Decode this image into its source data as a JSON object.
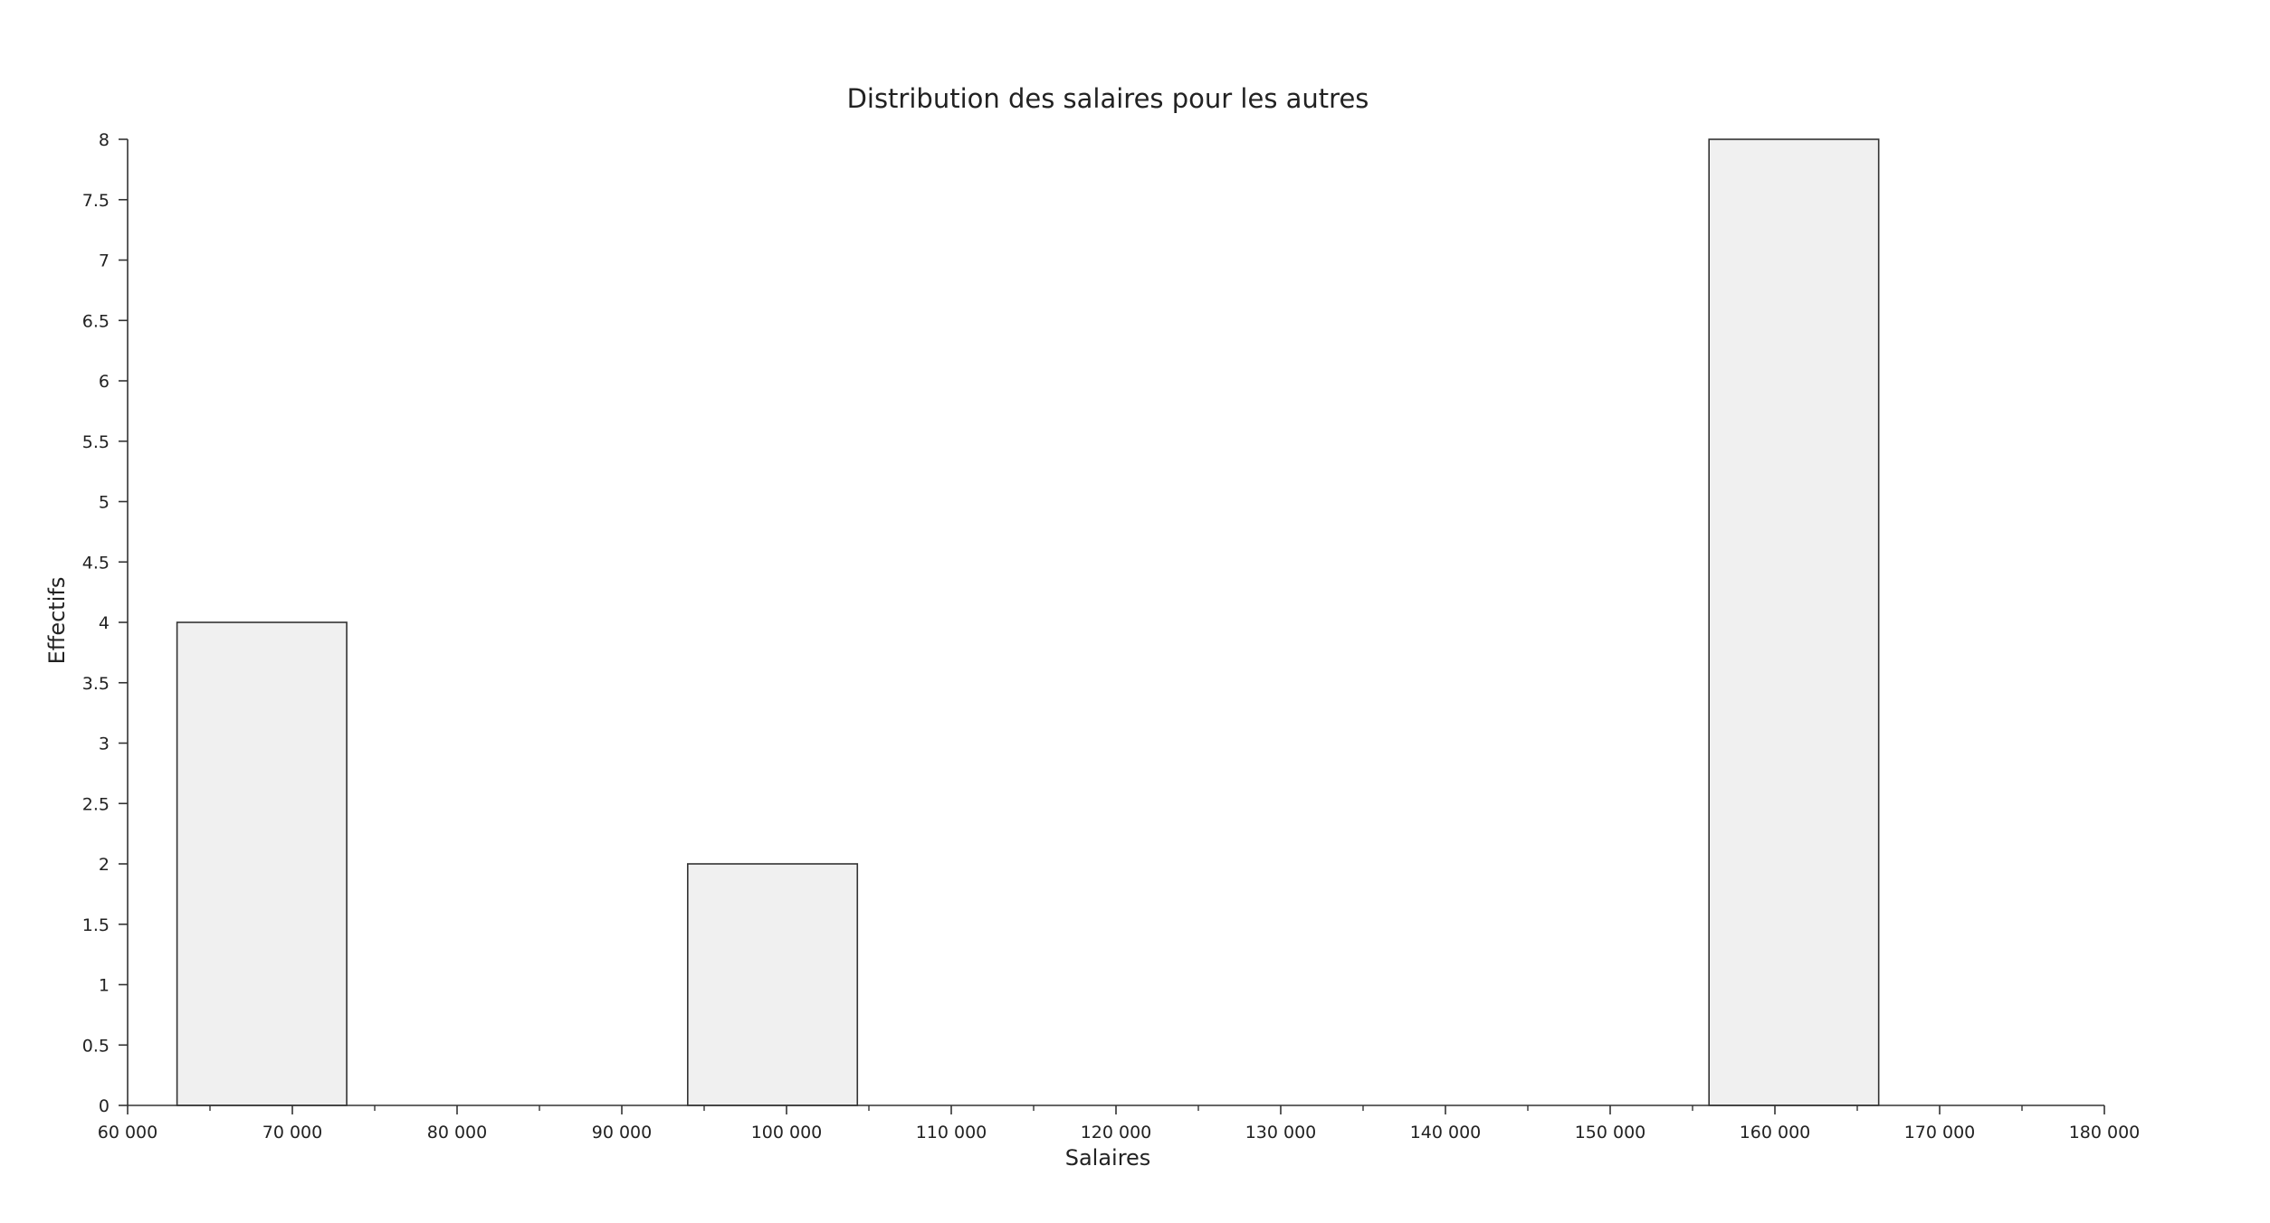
{
  "chart_data": {
    "type": "bar",
    "title": "Distribution des salaires pour les autres",
    "xlabel": "Salaires",
    "ylabel": "Effectifs",
    "xlim": [
      60000,
      180000
    ],
    "ylim": [
      0,
      8
    ],
    "grid": false,
    "x_ticks": [
      {
        "value": 60000,
        "label": "60 000"
      },
      {
        "value": 70000,
        "label": "70 000"
      },
      {
        "value": 80000,
        "label": "80 000"
      },
      {
        "value": 90000,
        "label": "90 000"
      },
      {
        "value": 100000,
        "label": "100 000"
      },
      {
        "value": 110000,
        "label": "110 000"
      },
      {
        "value": 120000,
        "label": "120 000"
      },
      {
        "value": 130000,
        "label": "130 000"
      },
      {
        "value": 140000,
        "label": "140 000"
      },
      {
        "value": 150000,
        "label": "150 000"
      },
      {
        "value": 160000,
        "label": "160 000"
      },
      {
        "value": 170000,
        "label": "170 000"
      },
      {
        "value": 180000,
        "label": "180 000"
      }
    ],
    "y_ticks": [
      {
        "value": 0,
        "label": "0"
      },
      {
        "value": 0.5,
        "label": "0.5"
      },
      {
        "value": 1,
        "label": "1"
      },
      {
        "value": 1.5,
        "label": "1.5"
      },
      {
        "value": 2,
        "label": "2"
      },
      {
        "value": 2.5,
        "label": "2.5"
      },
      {
        "value": 3,
        "label": "3"
      },
      {
        "value": 3.5,
        "label": "3.5"
      },
      {
        "value": 4,
        "label": "4"
      },
      {
        "value": 4.5,
        "label": "4.5"
      },
      {
        "value": 5,
        "label": "5"
      },
      {
        "value": 5.5,
        "label": "5.5"
      },
      {
        "value": 6,
        "label": "6"
      },
      {
        "value": 6.5,
        "label": "6.5"
      },
      {
        "value": 7,
        "label": "7"
      },
      {
        "value": 7.5,
        "label": "7.5"
      },
      {
        "value": 8,
        "label": "8"
      }
    ],
    "bins": [
      {
        "x_start": 63000,
        "x_end": 73300,
        "count": 4
      },
      {
        "x_start": 94000,
        "x_end": 104300,
        "count": 2
      },
      {
        "x_start": 156000,
        "x_end": 166300,
        "count": 8
      }
    ],
    "bar_fill": "#f0f0f0",
    "bar_stroke": "#333333",
    "axis_color": "#333333"
  }
}
